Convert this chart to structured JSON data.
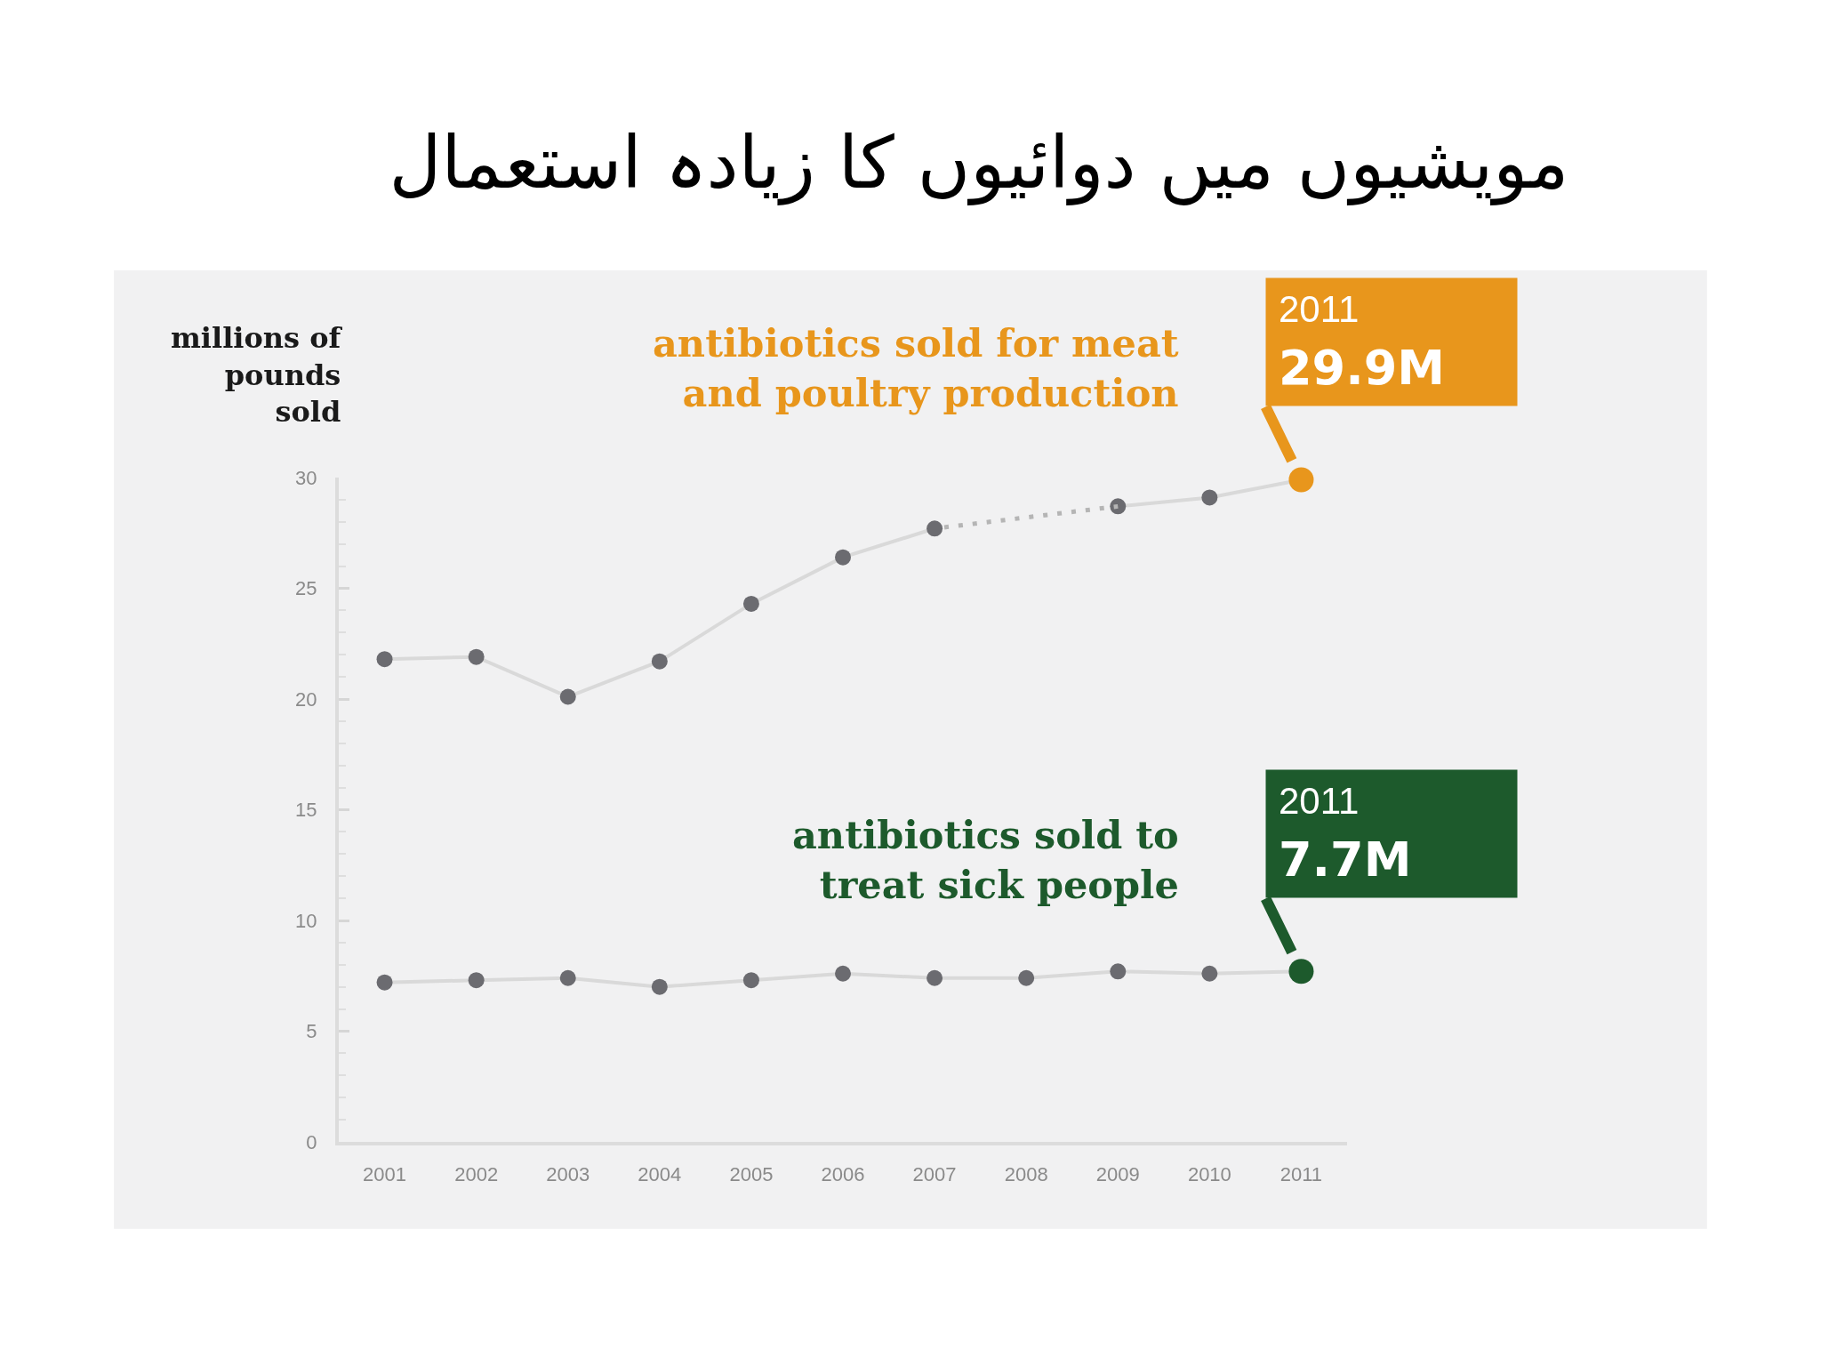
{
  "chart_data": {
    "type": "line",
    "title": "مویشیوں میں دوائیوں کا زیادہ استعمال",
    "ylabel": "millions of\npounds\nsold",
    "x": [
      2001,
      2002,
      2003,
      2004,
      2005,
      2006,
      2007,
      2008,
      2009,
      2010,
      2011
    ],
    "xlim": [
      2000.5,
      2011.5
    ],
    "xticks": [
      2001,
      2002,
      2003,
      2004,
      2005,
      2006,
      2007,
      2008,
      2009,
      2010,
      2011
    ],
    "ylim": [
      0,
      30
    ],
    "yticks": [
      0,
      {
        "value": 1,
        "label": null
      },
      {
        "value": 2,
        "label": null
      },
      {
        "value": 3,
        "label": null
      },
      {
        "value": 4,
        "label": null
      },
      5,
      {
        "value": 6,
        "label": null
      },
      {
        "value": 7,
        "label": null
      },
      {
        "value": 8,
        "label": null
      },
      {
        "value": 9,
        "label": null
      },
      10,
      {
        "value": 11,
        "label": null
      },
      {
        "value": 12,
        "label": null
      },
      {
        "value": 13,
        "label": null
      },
      {
        "value": 14,
        "label": null
      },
      15,
      {
        "value": 16,
        "label": null
      },
      {
        "value": 17,
        "label": null
      },
      {
        "value": 18,
        "label": null
      },
      {
        "value": 19,
        "label": null
      },
      20,
      {
        "value": 21,
        "label": null
      },
      {
        "value": 22,
        "label": null
      },
      {
        "value": 23,
        "label": null
      },
      {
        "value": 24,
        "label": null
      },
      25,
      {
        "value": 26,
        "label": null
      },
      {
        "value": 27,
        "label": null
      },
      {
        "value": 28,
        "label": null
      },
      {
        "value": 29,
        "label": null
      },
      30
    ],
    "series": [
      {
        "name": "antibiotics sold for meat\nand poultry production",
        "color": "#d9d9d9",
        "values": [
          21.8,
          21.9,
          20.1,
          21.7,
          24.3,
          26.4,
          27.7,
          null,
          28.7,
          29.1,
          29.9
        ],
        "colors": [
          "#6b6b70",
          "#6b6b70",
          "#6b6b70",
          "#6b6b70",
          "#6b6b70",
          "#6b6b70",
          "#6b6b70",
          "#6b6b70",
          "#6b6b70",
          "#6b6b70",
          "#e8961c"
        ]
      },
      {
        "name": "antibiotics sold to\ntreat sick people",
        "color": "#d9d9d9",
        "values": [
          7.2,
          7.3,
          7.4,
          7.0,
          7.3,
          7.6,
          7.4,
          7.4,
          7.7,
          7.6,
          7.7
        ],
        "colors": [
          "#6b6b70",
          "#6b6b70",
          "#6b6b70",
          "#6b6b70",
          "#6b6b70",
          "#6b6b70",
          "#6b6b70",
          "#6b6b70",
          "#6b6b70",
          "#6b6b70",
          "#1d5a2c"
        ]
      },
      {
        "color": "#b5b5b5",
        "line_style": "dotted",
        "marker": "none",
        "x": [
          2007,
          2009
        ],
        "values": [
          27.7,
          28.7
        ]
      }
    ],
    "annotations": [
      {
        "text": "2011\n29.9M",
        "x": 2011,
        "y": 29.9
      },
      {
        "text": "2011\n7.7M",
        "x": 2011,
        "y": 7.7
      }
    ],
    "marker": "circle",
    "line_style": "solid",
    "grid": false,
    "legend": false
  }
}
